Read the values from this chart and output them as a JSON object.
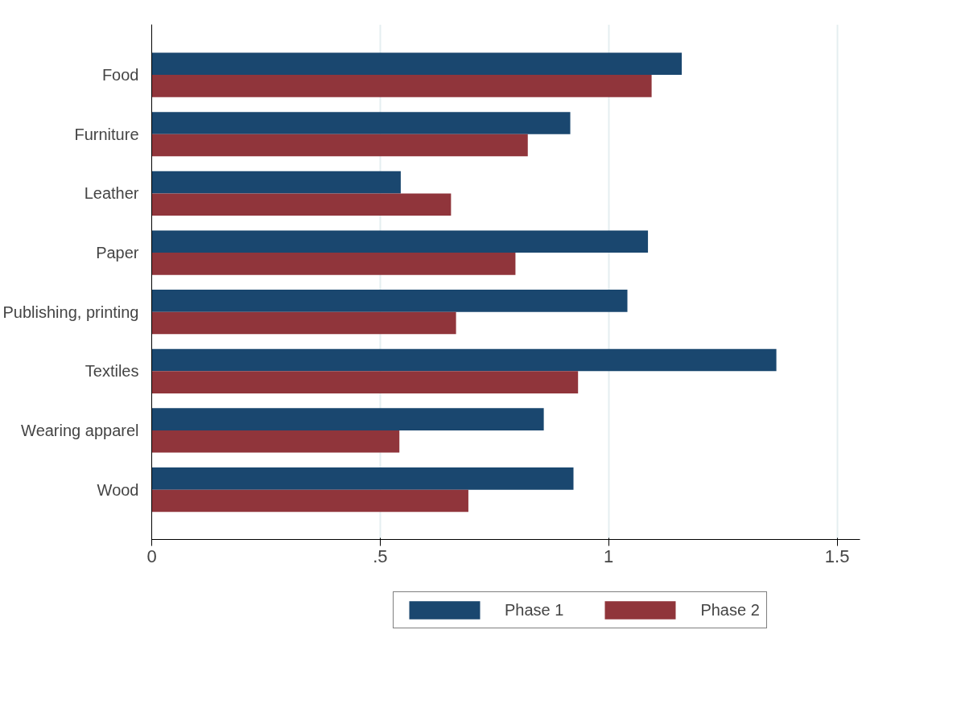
{
  "chart_data": {
    "type": "bar",
    "orientation": "horizontal",
    "categories": [
      "Food",
      "Furniture",
      "Leather",
      "Paper",
      "Publishing, printing",
      "Textiles",
      "Wearing apparel",
      "Wood"
    ],
    "series": [
      {
        "name": "Phase 1",
        "color": "#1a476f",
        "values": [
          1.16,
          0.916,
          0.545,
          1.086,
          1.041,
          1.367,
          0.858,
          0.923
        ]
      },
      {
        "name": "Phase 2",
        "color": "#90353b",
        "values": [
          1.094,
          0.823,
          0.655,
          0.796,
          0.666,
          0.933,
          0.542,
          0.693
        ]
      }
    ],
    "xlim": [
      0,
      1.55
    ],
    "xticks": [
      0,
      {
        "value": 0.5,
        "label": ".5"
      },
      1,
      1.5
    ],
    "grid": "x",
    "legend": "bottom"
  }
}
